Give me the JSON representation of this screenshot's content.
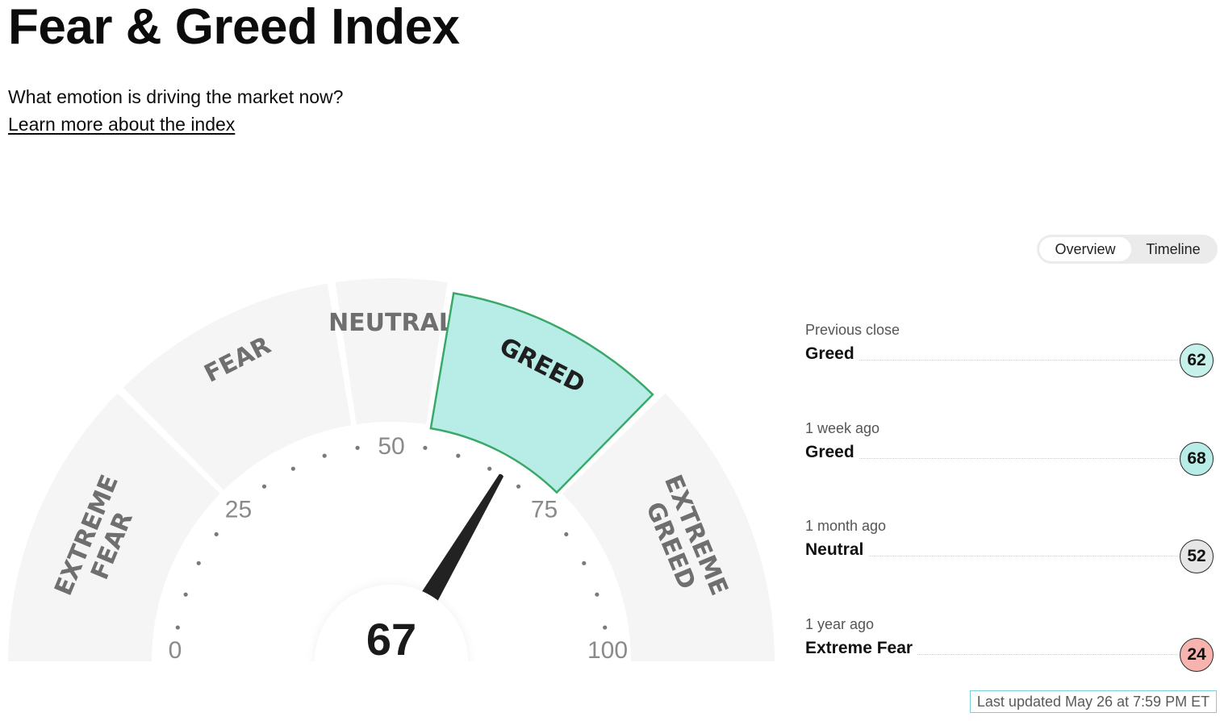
{
  "header": {
    "title": "Fear & Greed Index",
    "subtitle": "What emotion is driving the market now?",
    "learn_more_link": "Learn more about the index"
  },
  "view_toggle": {
    "options": [
      "Overview",
      "Timeline"
    ],
    "selected": "Overview"
  },
  "gauge": {
    "score": "67",
    "score_value": 67,
    "min": 0,
    "max": 100,
    "active_segment": "GREED",
    "segments": [
      {
        "label_lines": [
          "EXTREME",
          "FEAR"
        ],
        "range": [
          0,
          25
        ]
      },
      {
        "label_lines": [
          "FEAR"
        ],
        "range": [
          25,
          45
        ]
      },
      {
        "label_lines": [
          "NEUTRAL"
        ],
        "range": [
          45,
          55
        ]
      },
      {
        "label_lines": [
          "GREED"
        ],
        "range": [
          55,
          75
        ]
      },
      {
        "label_lines": [
          "EXTREME",
          "GREED"
        ],
        "range": [
          75,
          100
        ]
      }
    ],
    "tick_labels": [
      "0",
      "25",
      "50",
      "75",
      "100"
    ],
    "colors": {
      "segment_bg": "#f5f5f5",
      "active_fill": "#b8ece6",
      "active_stroke": "#3aa86a",
      "needle": "#222222"
    }
  },
  "history": [
    {
      "label": "Previous close",
      "status": "Greed",
      "value": "62",
      "color": "#c6f0ea"
    },
    {
      "label": "1 week ago",
      "status": "Greed",
      "value": "68",
      "color": "#b8ece6"
    },
    {
      "label": "1 month ago",
      "status": "Neutral",
      "value": "52",
      "color": "#e6e6e6"
    },
    {
      "label": "1 year ago",
      "status": "Extreme Fear",
      "value": "24",
      "color": "#f7b4ae"
    }
  ],
  "last_updated": "Last updated May 26 at 7:59 PM ET"
}
